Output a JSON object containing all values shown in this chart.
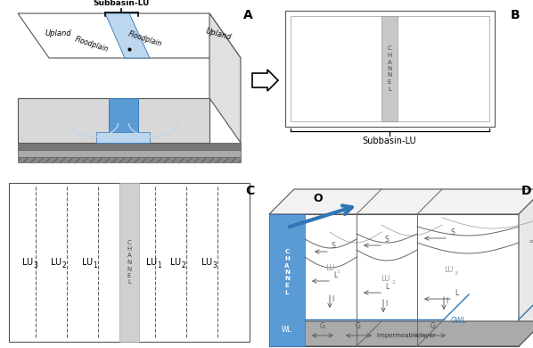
{
  "panel_A_label": "A",
  "panel_B_label": "B",
  "panel_C_label": "C",
  "panel_D_label": "D",
  "subbasin_lu_text": "Subbasin-LU",
  "channel_text": "C\nH\nA\nN\nN\nE\nL",
  "upland_text": "Upland",
  "floodplain_text": "Floodplain",
  "gwl_text": "GWL",
  "wl_text": "WL",
  "impermeable_text": "Impermeable layer",
  "o_text": "O",
  "bg_color": "#ffffff",
  "box_edge_color": "#555555",
  "blue_fill": "#5b9bd5",
  "blue_dark": "#2e75b6",
  "light_blue": "#bdd7ee",
  "gray_light": "#d9d9d9",
  "gray_med": "#c8c8c8",
  "gray_dark": "#888888"
}
